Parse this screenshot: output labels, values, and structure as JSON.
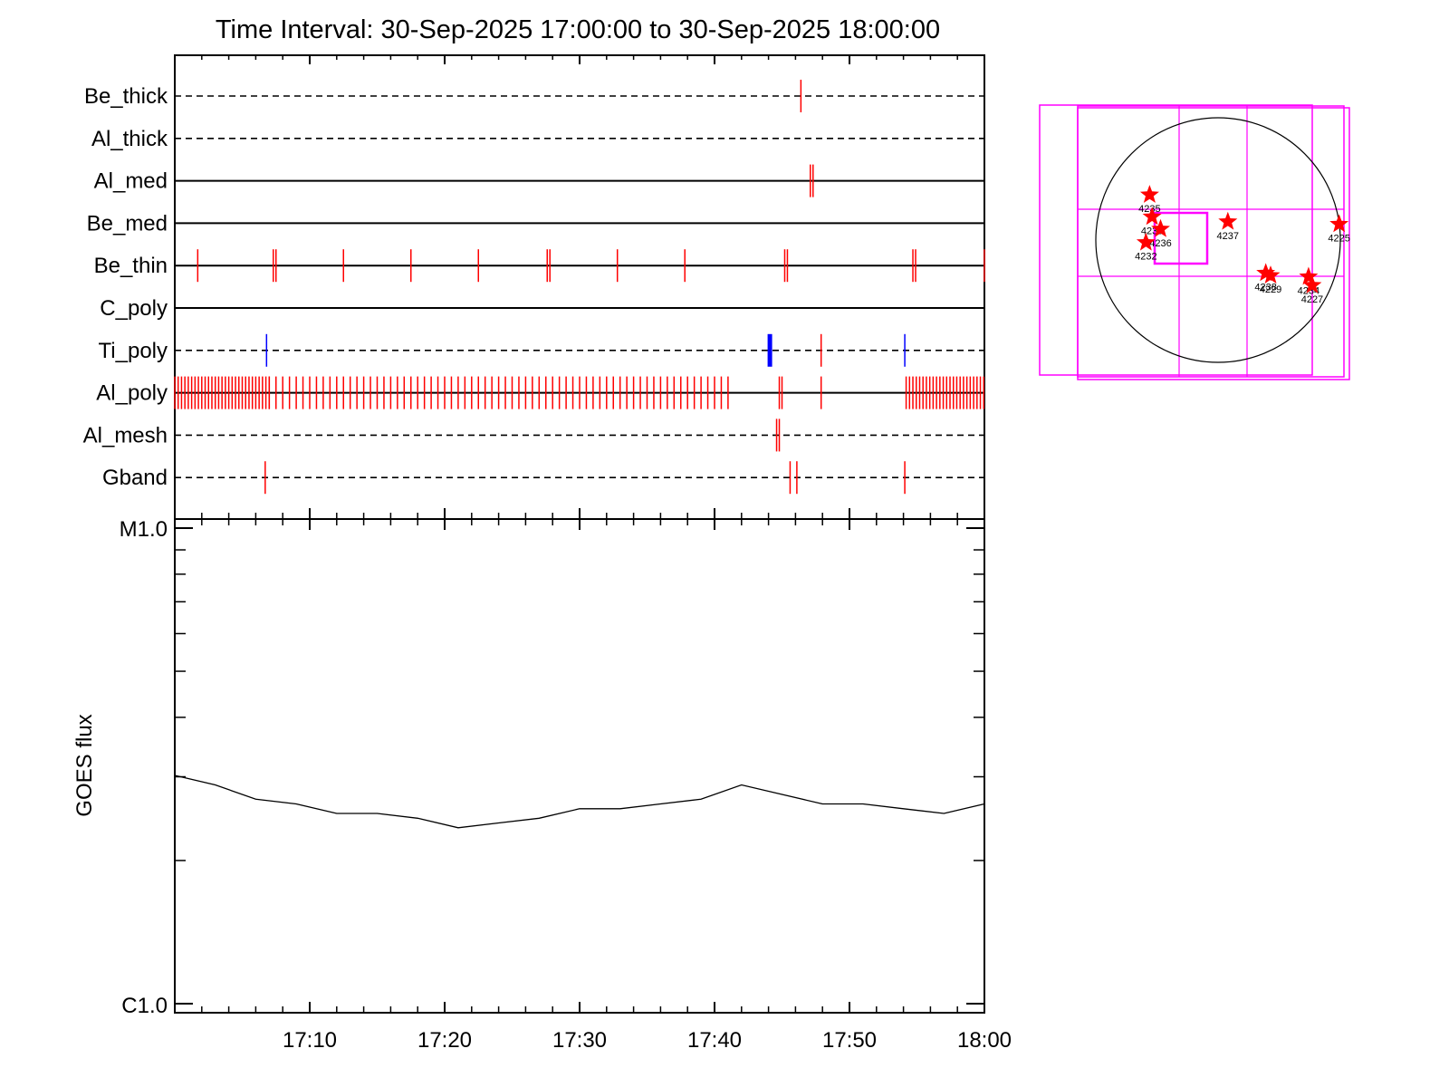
{
  "title": "Time Interval: 30-Sep-2025 17:00:00 to 30-Sep-2025 18:00:00",
  "colors": {
    "event": "#ff0000",
    "ti_event": "#0000ff",
    "fov_box": "#ff00ff",
    "sun": "#000000",
    "flux": "#000000"
  },
  "chart_data": [
    {
      "type": "timeline",
      "x_range": [
        "17:00",
        "18:00"
      ],
      "channels": [
        {
          "name": "Be_thick",
          "style": "dashed",
          "events": [
            {
              "t": [
                46.4
              ],
              "color": "red"
            }
          ]
        },
        {
          "name": "Al_thick",
          "style": "dashed",
          "events": []
        },
        {
          "name": "Al_med",
          "style": "solid",
          "events": [
            {
              "t": [
                47.1,
                47.3
              ],
              "color": "red"
            }
          ]
        },
        {
          "name": "Be_med",
          "style": "solid",
          "events": []
        },
        {
          "name": "Be_thin",
          "style": "solid",
          "events": [
            {
              "t": [
                1.7,
                7.3,
                7.5,
                12.5,
                17.5,
                22.5,
                27.6,
                27.8,
                32.8,
                37.8,
                45.2,
                45.4,
                54.7,
                54.9,
                60.0
              ],
              "color": "red"
            }
          ]
        },
        {
          "name": "C_poly",
          "style": "solid",
          "events": []
        },
        {
          "name": "Ti_poly",
          "style": "dashed",
          "events": [
            {
              "t": [
                6.8,
                54.1
              ],
              "color": "blue"
            },
            {
              "t": [
                44.1
              ],
              "color": "blue",
              "heavy": true
            },
            {
              "t": [
                47.9
              ],
              "color": "red"
            }
          ]
        },
        {
          "name": "Al_poly",
          "style": "solid",
          "events": [
            {
              "range": [
                0.0,
                7.0
              ],
              "step": 0.25,
              "color": "red"
            },
            {
              "range": [
                7.0,
                41.0
              ],
              "step": 0.5,
              "color": "red"
            },
            {
              "t": [
                44.8,
                45.0,
                47.9
              ],
              "color": "red"
            },
            {
              "range": [
                54.2,
                60.0
              ],
              "step": 0.25,
              "color": "red"
            }
          ]
        },
        {
          "name": "Al_mesh",
          "style": "dashed",
          "events": [
            {
              "t": [
                44.6,
                44.8
              ],
              "color": "red"
            }
          ]
        },
        {
          "name": "Gband",
          "style": "dashed",
          "events": [
            {
              "t": [
                6.7,
                45.6,
                46.1,
                54.1
              ],
              "color": "red"
            }
          ]
        }
      ]
    },
    {
      "type": "line",
      "ylabel": "GOES flux",
      "y_scale": "log",
      "ylim": [
        "C1.0",
        "M1.0"
      ],
      "y_ticks": [
        "M1.0",
        "C1.0"
      ],
      "x_tick_labels": [
        "17:10",
        "17:20",
        "17:30",
        "17:40",
        "17:50",
        "18:00"
      ],
      "x_ticks_minutes": [
        10,
        20,
        30,
        40,
        50,
        60
      ],
      "x_minutes": [
        0,
        3,
        6,
        9,
        12,
        15,
        18,
        21,
        24,
        27,
        30,
        33,
        36,
        39,
        42,
        45,
        48,
        51,
        54,
        57,
        60
      ],
      "series": [
        {
          "values_log10_relative_to_C1": [
            0.48,
            0.46,
            0.43,
            0.42,
            0.4,
            0.4,
            0.39,
            0.37,
            0.38,
            0.39,
            0.41,
            0.41,
            0.42,
            0.43,
            0.46,
            0.44,
            0.42,
            0.42,
            0.41,
            0.4,
            0.42
          ]
        }
      ]
    },
    {
      "type": "scatter",
      "subtype": "solar_disk_map",
      "points": [
        {
          "label": "4235",
          "x": -0.56,
          "y": 0.37
        },
        {
          "label": "4239",
          "x": -0.54,
          "y": 0.19
        },
        {
          "label": "4236",
          "x": -0.47,
          "y": 0.09
        },
        {
          "label": "4232",
          "x": -0.59,
          "y": -0.02
        },
        {
          "label": "4237",
          "x": 0.08,
          "y": 0.15
        },
        {
          "label": "4225",
          "x": 0.99,
          "y": 0.13
        },
        {
          "label": "4238",
          "x": 0.39,
          "y": -0.27
        },
        {
          "label": "4229",
          "x": 0.43,
          "y": -0.29
        },
        {
          "label": "4234",
          "x": 0.74,
          "y": -0.3
        },
        {
          "label": "4227",
          "x": 0.77,
          "y": -0.37
        }
      ]
    }
  ]
}
